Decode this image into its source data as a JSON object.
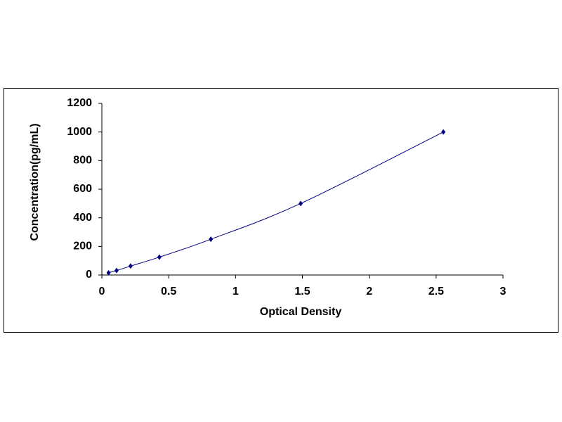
{
  "chart_data": {
    "type": "scatter",
    "x_label": "Optical Density",
    "y_label": "Concentration(pg/mL)",
    "x": [
      0.05,
      0.11,
      0.215,
      0.43,
      0.815,
      1.487,
      2.554
    ],
    "values": [
      15.625,
      31.25,
      62.5,
      125,
      250,
      500,
      1000
    ],
    "color": "#000080",
    "line": "smooth",
    "xlim": [
      0,
      3
    ],
    "xticks": [
      0,
      0.5,
      1,
      1.5,
      2,
      2.5,
      3
    ],
    "ylim": [
      0,
      1200
    ],
    "yticks": [
      0,
      200,
      400,
      600,
      800,
      1000,
      1200
    ],
    "grid": false
  }
}
